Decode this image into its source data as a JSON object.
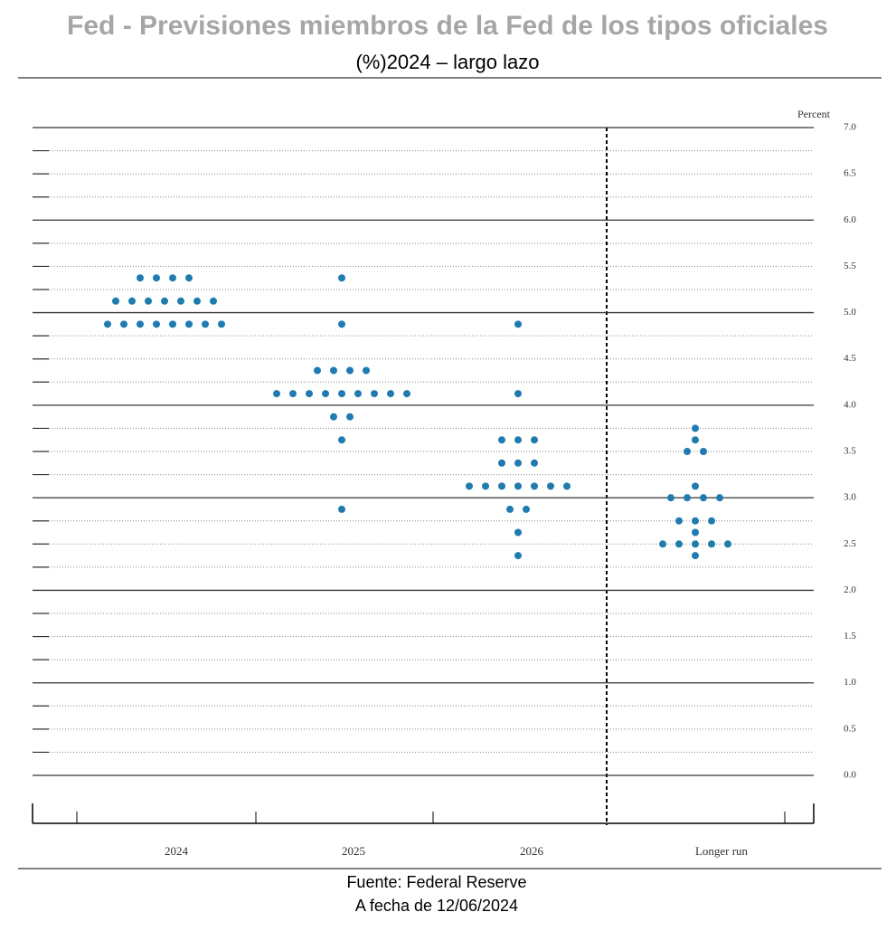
{
  "chart_data": {
    "type": "dot",
    "title": "Fed - Previsiones miembros de la Fed de los tipos oficiales",
    "subtitle": "(%)2024 – largo lazo",
    "y_label": "Percent",
    "source": "Fuente: Federal Reserve",
    "date": "A fecha de 12/06/2024",
    "color": "#1f7bb0",
    "categories": [
      "2024",
      "2025",
      "2026",
      "Longer run"
    ],
    "values": [
      [
        5.375,
        5.375,
        5.375,
        5.375,
        5.125,
        5.125,
        5.125,
        5.125,
        5.125,
        5.125,
        5.125,
        4.875,
        4.875,
        4.875,
        4.875,
        4.875,
        4.875,
        4.875,
        4.875
      ],
      [
        5.375,
        4.875,
        4.375,
        4.375,
        4.375,
        4.375,
        4.125,
        4.125,
        4.125,
        4.125,
        4.125,
        4.125,
        4.125,
        4.125,
        4.125,
        3.875,
        3.875,
        3.625,
        2.875
      ],
      [
        4.875,
        4.125,
        3.625,
        3.625,
        3.625,
        3.375,
        3.375,
        3.375,
        3.125,
        3.125,
        3.125,
        3.125,
        3.125,
        3.125,
        3.125,
        2.875,
        2.875,
        2.625,
        2.375
      ],
      [
        3.75,
        3.625,
        3.5,
        3.5,
        3.125,
        3.0,
        3.0,
        3.0,
        3.0,
        2.75,
        2.75,
        2.75,
        2.625,
        2.5,
        2.5,
        2.5,
        2.5,
        2.5,
        2.375
      ]
    ],
    "ylim": [
      0,
      7
    ],
    "yticks": [
      {
        "value": 0,
        "label": "0.0"
      },
      {
        "value": 0.5,
        "label": "0.5"
      },
      {
        "value": 1,
        "label": "1.0"
      },
      {
        "value": 1.5,
        "label": "1.5"
      },
      {
        "value": 2,
        "label": "2.0"
      },
      {
        "value": 2.5,
        "label": "2.5"
      },
      {
        "value": 3,
        "label": "3.0"
      },
      {
        "value": 3.5,
        "label": "3.5"
      },
      {
        "value": 4,
        "label": "4.0"
      },
      {
        "value": 4.5,
        "label": "4.5"
      },
      {
        "value": 5,
        "label": "5.0"
      },
      {
        "value": 5.5,
        "label": "5.5"
      },
      {
        "value": 6,
        "label": "6.0"
      },
      {
        "value": 6.5,
        "label": "6.5"
      },
      {
        "value": 7,
        "label": "7.0"
      }
    ],
    "grid": true
  }
}
